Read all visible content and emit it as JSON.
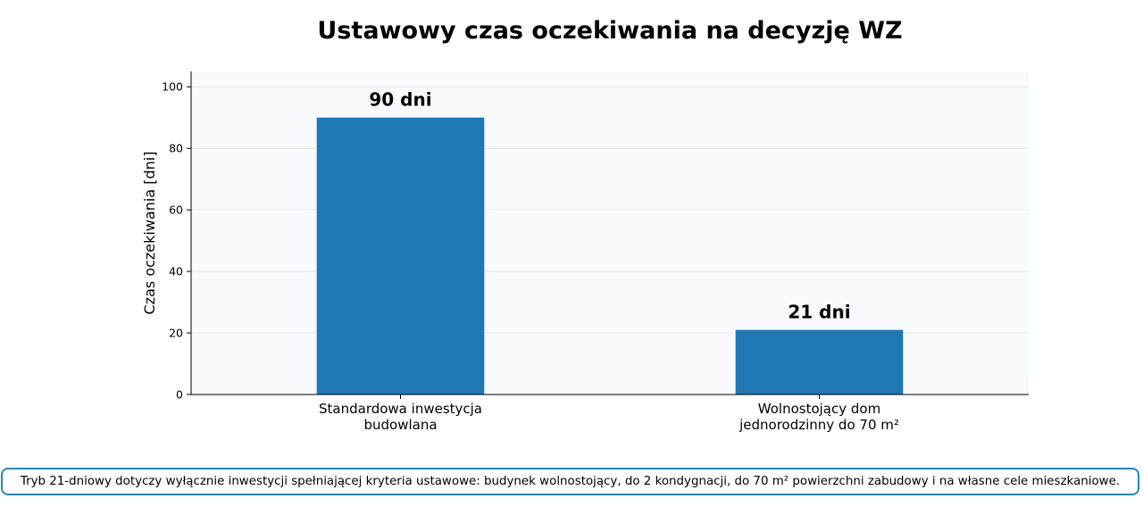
{
  "chart_data": {
    "type": "bar",
    "title": "Ustawowy czas oczekiwania na decyzję WZ",
    "xlabel": "",
    "ylabel": "Czas oczekiwania [dni]",
    "categories": [
      [
        "Standardowa inwestycja",
        "budowlana"
      ],
      [
        "Wolnostojący dom",
        "jednorodzinny do 70 m²"
      ]
    ],
    "values": [
      90,
      21
    ],
    "data_labels": [
      "90 dni",
      "21 dni"
    ],
    "ylim": [
      0,
      105
    ],
    "yticks": [
      0,
      20,
      40,
      60,
      80,
      100
    ],
    "grid": true,
    "bar_color": "#1f77b4",
    "plot_background": "#f8fafd",
    "grid_color": "#e3e8ee"
  },
  "note": "Tryb 21-dniowy dotyczy wyłącznie inwestycji spełniającej kryteria ustawowe: budynek wolnostojący, do 2 kondygnacji, do 70 m² powierzchni zabudowy i na własne cele mieszkaniowe."
}
